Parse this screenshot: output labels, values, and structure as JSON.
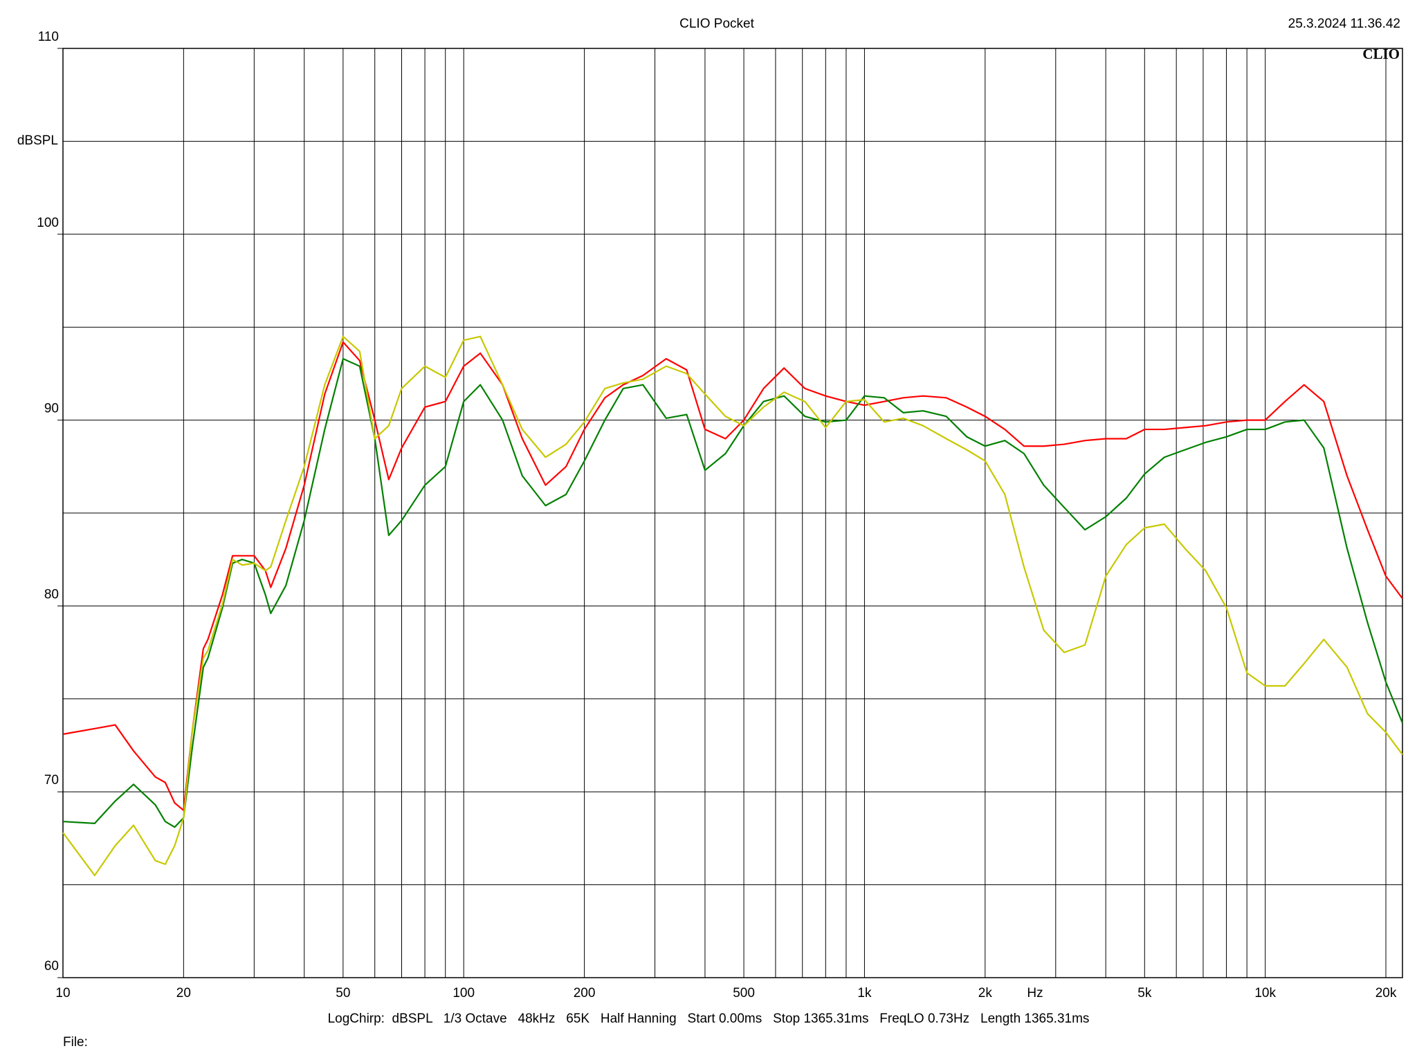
{
  "chart_data": {
    "type": "line",
    "title": "CLIO Pocket",
    "timestamp": "25.3.2024 11.36.42",
    "logo": "CLIO",
    "y_label": "dBSPL",
    "x_label": "Hz",
    "footer": "LogChirp:  dBSPL   1/3 Octave   48kHz   65K   Half Hanning   Start 0.00ms   Stop 1365.31ms   FreqLO 0.73Hz   Length 1365.31ms",
    "file_label": "File:",
    "x_scale": "log",
    "xlim": [
      10,
      22000
    ],
    "xticks": [
      10,
      20,
      50,
      100,
      200,
      500,
      {
        "value": 1000,
        "label": "1k"
      },
      {
        "value": 2000,
        "label": "2k"
      },
      {
        "value": 5000,
        "label": "5k"
      },
      {
        "value": 10000,
        "label": "10k"
      },
      {
        "value": 20000,
        "label": "20k"
      }
    ],
    "xticks_minor": [
      30,
      40,
      60,
      70,
      80,
      90,
      300,
      400,
      600,
      700,
      800,
      900,
      3000,
      4000,
      6000,
      7000,
      8000,
      9000
    ],
    "ylim": [
      60,
      110
    ],
    "yticks": [
      60,
      70,
      80,
      90,
      100,
      110
    ],
    "yticks_minor": [
      65,
      75,
      85,
      95,
      105
    ],
    "grid": true,
    "x": [
      10,
      12,
      13.5,
      15,
      17,
      18,
      19,
      20,
      21,
      22.4,
      23,
      25,
      26.5,
      28,
      30,
      32,
      33,
      36,
      40,
      45,
      50,
      55,
      60,
      65,
      70,
      80,
      90,
      100,
      110,
      125,
      140,
      160,
      180,
      200,
      225,
      250,
      280,
      320,
      360,
      400,
      450,
      500,
      560,
      630,
      710,
      800,
      900,
      1000,
      1120,
      1250,
      1400,
      1600,
      1800,
      2000,
      2240,
      2500,
      2800,
      3150,
      3550,
      4000,
      4500,
      5000,
      5600,
      6300,
      7100,
      8000,
      9000,
      10000,
      11200,
      12500,
      14000,
      16000,
      18000,
      20000,
      22000
    ],
    "series": [
      {
        "color": "#ff0000",
        "values": [
          73.1,
          73.4,
          73.6,
          72.2,
          70.8,
          70.5,
          69.4,
          69.0,
          73.2,
          77.7,
          78.2,
          80.6,
          82.7,
          82.7,
          82.7,
          81.9,
          81.0,
          83.1,
          86.5,
          91.4,
          94.2,
          93.2,
          90.0,
          86.8,
          88.5,
          90.7,
          91.0,
          92.9,
          93.6,
          91.9,
          89.0,
          86.5,
          87.5,
          89.5,
          91.2,
          91.9,
          92.4,
          93.3,
          92.7,
          89.5,
          89.0,
          90.0,
          91.7,
          92.8,
          91.7,
          91.3,
          91.0,
          90.8,
          91.0,
          91.2,
          91.3,
          91.2,
          90.7,
          90.2,
          89.5,
          88.6,
          88.6,
          88.7,
          88.9,
          89.0,
          89.0,
          89.5,
          89.5,
          89.6,
          89.7,
          89.9,
          90.0,
          90.0,
          91.0,
          91.9,
          91.0,
          87.0,
          84.1,
          81.6,
          80.4
        ]
      },
      {
        "color": "#008000",
        "values": [
          68.4,
          68.3,
          69.5,
          70.4,
          69.3,
          68.4,
          68.1,
          68.6,
          72.3,
          76.7,
          77.2,
          79.9,
          82.3,
          82.5,
          82.3,
          80.6,
          79.6,
          81.1,
          84.6,
          89.5,
          93.3,
          92.9,
          89.0,
          83.8,
          84.6,
          86.5,
          87.5,
          91.0,
          91.9,
          90.0,
          87.0,
          85.4,
          86.0,
          87.8,
          90.0,
          91.7,
          91.9,
          90.1,
          90.3,
          87.3,
          88.2,
          89.7,
          91.0,
          91.3,
          90.2,
          89.9,
          90.0,
          91.3,
          91.2,
          90.4,
          90.5,
          90.2,
          89.1,
          88.6,
          88.9,
          88.2,
          86.5,
          85.3,
          84.1,
          84.8,
          85.8,
          87.1,
          88.0,
          88.4,
          88.8,
          89.1,
          89.5,
          89.5,
          89.9,
          90.0,
          88.5,
          83.1,
          79.1,
          75.9,
          73.7
        ]
      },
      {
        "color": "#c8c800",
        "values": [
          67.8,
          65.5,
          67.1,
          68.2,
          66.3,
          66.1,
          67.1,
          68.6,
          73.2,
          77.2,
          77.6,
          80.1,
          82.5,
          82.2,
          82.3,
          81.9,
          82.1,
          84.6,
          87.5,
          91.9,
          94.5,
          93.7,
          89.0,
          89.7,
          91.7,
          92.9,
          92.3,
          94.3,
          94.5,
          91.9,
          89.5,
          88.0,
          88.7,
          89.9,
          91.7,
          92.0,
          92.2,
          92.9,
          92.5,
          91.4,
          90.2,
          89.7,
          90.7,
          91.5,
          91.0,
          89.6,
          91.0,
          91.1,
          89.9,
          90.1,
          89.7,
          89.0,
          88.4,
          87.8,
          86.0,
          82.1,
          78.7,
          77.5,
          77.9,
          81.6,
          83.3,
          84.2,
          84.4,
          83.1,
          81.9,
          79.9,
          76.4,
          75.7,
          75.7,
          76.9,
          78.2,
          76.7,
          74.2,
          73.2,
          72.0
        ]
      }
    ]
  }
}
